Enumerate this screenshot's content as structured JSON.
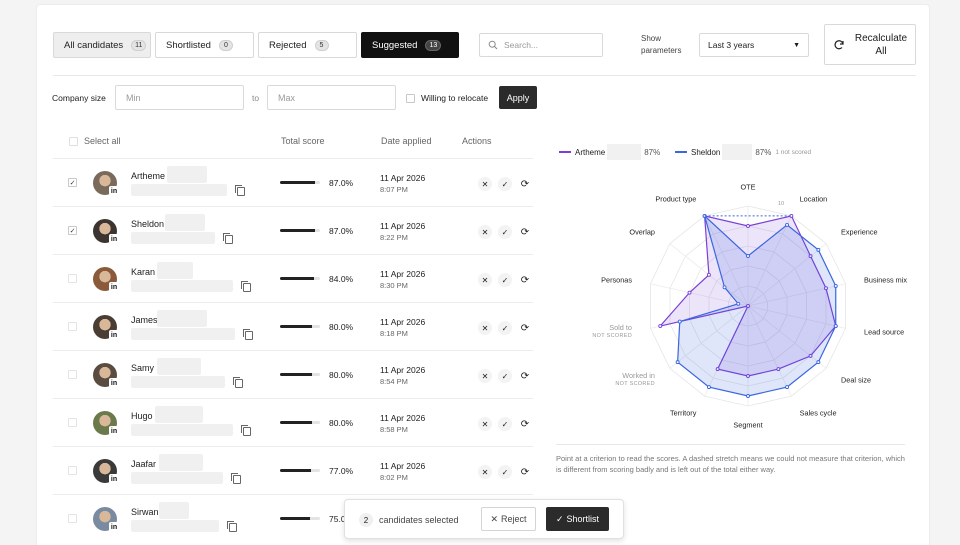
{
  "tabs": [
    {
      "label": "All candidates",
      "count": "11"
    },
    {
      "label": "Shortlisted",
      "count": "0"
    },
    {
      "label": "Rejected",
      "count": "5"
    },
    {
      "label": "Suggested",
      "count": "13"
    }
  ],
  "search": {
    "placeholder": "Search..."
  },
  "parameters": {
    "label_line1": "Show",
    "label_line2": "parameters",
    "selected": "Last 3 years"
  },
  "recalculate": {
    "line1": "Recalculate",
    "line2": "All"
  },
  "filters": {
    "company_size_label": "Company size",
    "min_placeholder": "Min",
    "to_label": "to",
    "max_placeholder": "Max",
    "relocate_label": "Willing to relocate",
    "apply_label": "Apply"
  },
  "table": {
    "select_all": "Select all",
    "headers": {
      "score": "Total score",
      "date": "Date applied",
      "actions": "Actions"
    },
    "rows": [
      {
        "name": "Artheme",
        "score": "87.0%",
        "progress": 0.87,
        "date": "11 Apr 2026",
        "time": "8:07 PM",
        "checked": true,
        "avatar": "#7a6a5c"
      },
      {
        "name": "Sheldon",
        "score": "87.0%",
        "progress": 0.87,
        "date": "11 Apr 2026",
        "time": "8:22 PM",
        "checked": true,
        "avatar": "#3b3430"
      },
      {
        "name": "Karan",
        "score": "84.0%",
        "progress": 0.84,
        "date": "11 Apr 2026",
        "time": "8:30 PM",
        "checked": false,
        "avatar": "#8a5a3a"
      },
      {
        "name": "James",
        "score": "80.0%",
        "progress": 0.8,
        "date": "11 Apr 2026",
        "time": "8:18 PM",
        "checked": false,
        "avatar": "#4a3e34"
      },
      {
        "name": "Samy",
        "score": "80.0%",
        "progress": 0.8,
        "date": "11 Apr 2026",
        "time": "8:54 PM",
        "checked": false,
        "avatar": "#5a4c40"
      },
      {
        "name": "Hugo",
        "score": "80.0%",
        "progress": 0.8,
        "date": "11 Apr 2026",
        "time": "8:58 PM",
        "checked": false,
        "avatar": "#6b7a4a"
      },
      {
        "name": "Jaafar",
        "score": "77.0%",
        "progress": 0.77,
        "date": "11 Apr 2026",
        "time": "8:02 PM",
        "checked": false,
        "avatar": "#3a3a3a"
      },
      {
        "name": "Sirwan",
        "score": "75.0",
        "progress": 0.75,
        "date": "",
        "time": "",
        "checked": false,
        "avatar": "#7a8aa0"
      }
    ]
  },
  "selection_bar": {
    "count": "2",
    "text": "candidates selected",
    "reject": "Reject",
    "shortlist": "Shortlist"
  },
  "chart_data": {
    "type": "radar",
    "max": 10,
    "scale_label": "10",
    "axes": [
      "OTE",
      "Location",
      "Experience",
      "Business mix",
      "Lead source",
      "Deal size",
      "Sales cycle",
      "Segment",
      "Territory",
      "Worked in",
      "Sold to",
      "Personas",
      "Overlap",
      "Product type"
    ],
    "not_scored_axes": [
      "Worked in",
      "Sold to"
    ],
    "not_scored_label": "NOT SCORED",
    "series": [
      {
        "name": "Artheme",
        "percent": "87%",
        "color": "#7b3fd6",
        "values": [
          8,
          10,
          8,
          8,
          9,
          8,
          7,
          7,
          7,
          0,
          9,
          6,
          5,
          10
        ]
      },
      {
        "name": "Sheldon",
        "percent": "87%",
        "note": "1 not scored",
        "color": "#3a66e0",
        "values": [
          5,
          9,
          9,
          9,
          9,
          9,
          9,
          9,
          9,
          9,
          7,
          1,
          3,
          10
        ]
      }
    ],
    "footnote": "Point at a criterion to read the scores. A dashed stretch means we could not measure that criterion, which is different from scoring badly and is left out of the total either way."
  }
}
